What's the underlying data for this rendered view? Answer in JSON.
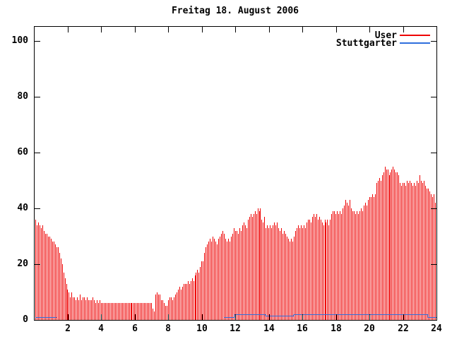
{
  "chart_data": {
    "type": "bar",
    "title": "Freitag 18. August 2006",
    "xlabel": "",
    "ylabel": "",
    "x_unit": "hour-of-day",
    "xlim": [
      0,
      24
    ],
    "ylim": [
      0,
      105
    ],
    "xticks": [
      2,
      4,
      6,
      8,
      10,
      12,
      14,
      16,
      18,
      20,
      22,
      24
    ],
    "yticks": [
      0,
      20,
      40,
      60,
      80,
      100
    ],
    "grid": false,
    "legend_position": "top-right",
    "sample_interval_minutes": 5,
    "series": [
      {
        "name": "User",
        "style": "impulses",
        "color": "#ee0000",
        "start_hour": 0.0833,
        "step_hours": 0.0833,
        "values": [
          36,
          34,
          35,
          34,
          33,
          34,
          32,
          31,
          31,
          30,
          30,
          29,
          28,
          28,
          27,
          26,
          26,
          24,
          22,
          20,
          17,
          15,
          13,
          11,
          10,
          8,
          10,
          8,
          8,
          7,
          8,
          7,
          9,
          7,
          8,
          8,
          7,
          8,
          7,
          7,
          7,
          8,
          7,
          6,
          7,
          6,
          7,
          6,
          6,
          6,
          6,
          6,
          6,
          6,
          6,
          6,
          6,
          6,
          6,
          6,
          6,
          6,
          6,
          6,
          6,
          6,
          6,
          6,
          6,
          6,
          6,
          6,
          6,
          6,
          6,
          6,
          6,
          6,
          6,
          6,
          6,
          6,
          6,
          6,
          4,
          3,
          9,
          10,
          9,
          9,
          7,
          7,
          6,
          5,
          5,
          7,
          8,
          8,
          7,
          8,
          9,
          10,
          11,
          12,
          11,
          12,
          13,
          13,
          13,
          14,
          13,
          14,
          15,
          14,
          16,
          17,
          18,
          17,
          19,
          21,
          21,
          24,
          26,
          27,
          28,
          29,
          28,
          30,
          29,
          28,
          27,
          29,
          30,
          31,
          32,
          31,
          29,
          28,
          29,
          28,
          30,
          31,
          33,
          32,
          32,
          31,
          33,
          32,
          34,
          35,
          34,
          33,
          36,
          37,
          38,
          37,
          38,
          39,
          38,
          40,
          39,
          40,
          36,
          35,
          37,
          33,
          34,
          33,
          34,
          33,
          34,
          35,
          34,
          35,
          33,
          32,
          33,
          31,
          32,
          31,
          30,
          29,
          28,
          29,
          28,
          30,
          32,
          33,
          34,
          33,
          34,
          33,
          34,
          33,
          35,
          36,
          36,
          35,
          37,
          38,
          37,
          38,
          36,
          37,
          36,
          35,
          34,
          36,
          35,
          36,
          34,
          36,
          38,
          39,
          39,
          38,
          39,
          38,
          39,
          38,
          40,
          41,
          43,
          42,
          41,
          43,
          40,
          39,
          39,
          38,
          39,
          38,
          39,
          40,
          39,
          41,
          42,
          41,
          43,
          44,
          44,
          45,
          44,
          45,
          49,
          50,
          51,
          50,
          52,
          53,
          55,
          54,
          54,
          52,
          53,
          54,
          55,
          54,
          53,
          53,
          52,
          49,
          48,
          49,
          49,
          48,
          50,
          49,
          50,
          49,
          48,
          49,
          48,
          50,
          49,
          52,
          50,
          49,
          50,
          48,
          47,
          47,
          46,
          45,
          44,
          45,
          42,
          41
        ]
      },
      {
        "name": "Stuttgarter",
        "style": "steps",
        "color": "#2f6fdd",
        "segments": [
          [
            [
              0.083,
              1
            ],
            [
              1.35,
              1
            ]
          ],
          [
            [
              11.33,
              1
            ],
            [
              11.95,
              1
            ],
            [
              11.95,
              2
            ],
            [
              13.8,
              2
            ],
            [
              13.8,
              1.5
            ],
            [
              15.5,
              1.5
            ],
            [
              15.5,
              2
            ],
            [
              23.5,
              2
            ],
            [
              23.5,
              1
            ],
            [
              24,
              1
            ]
          ]
        ]
      }
    ]
  },
  "colors": {
    "axis": "#000000",
    "background": "#ffffff"
  }
}
